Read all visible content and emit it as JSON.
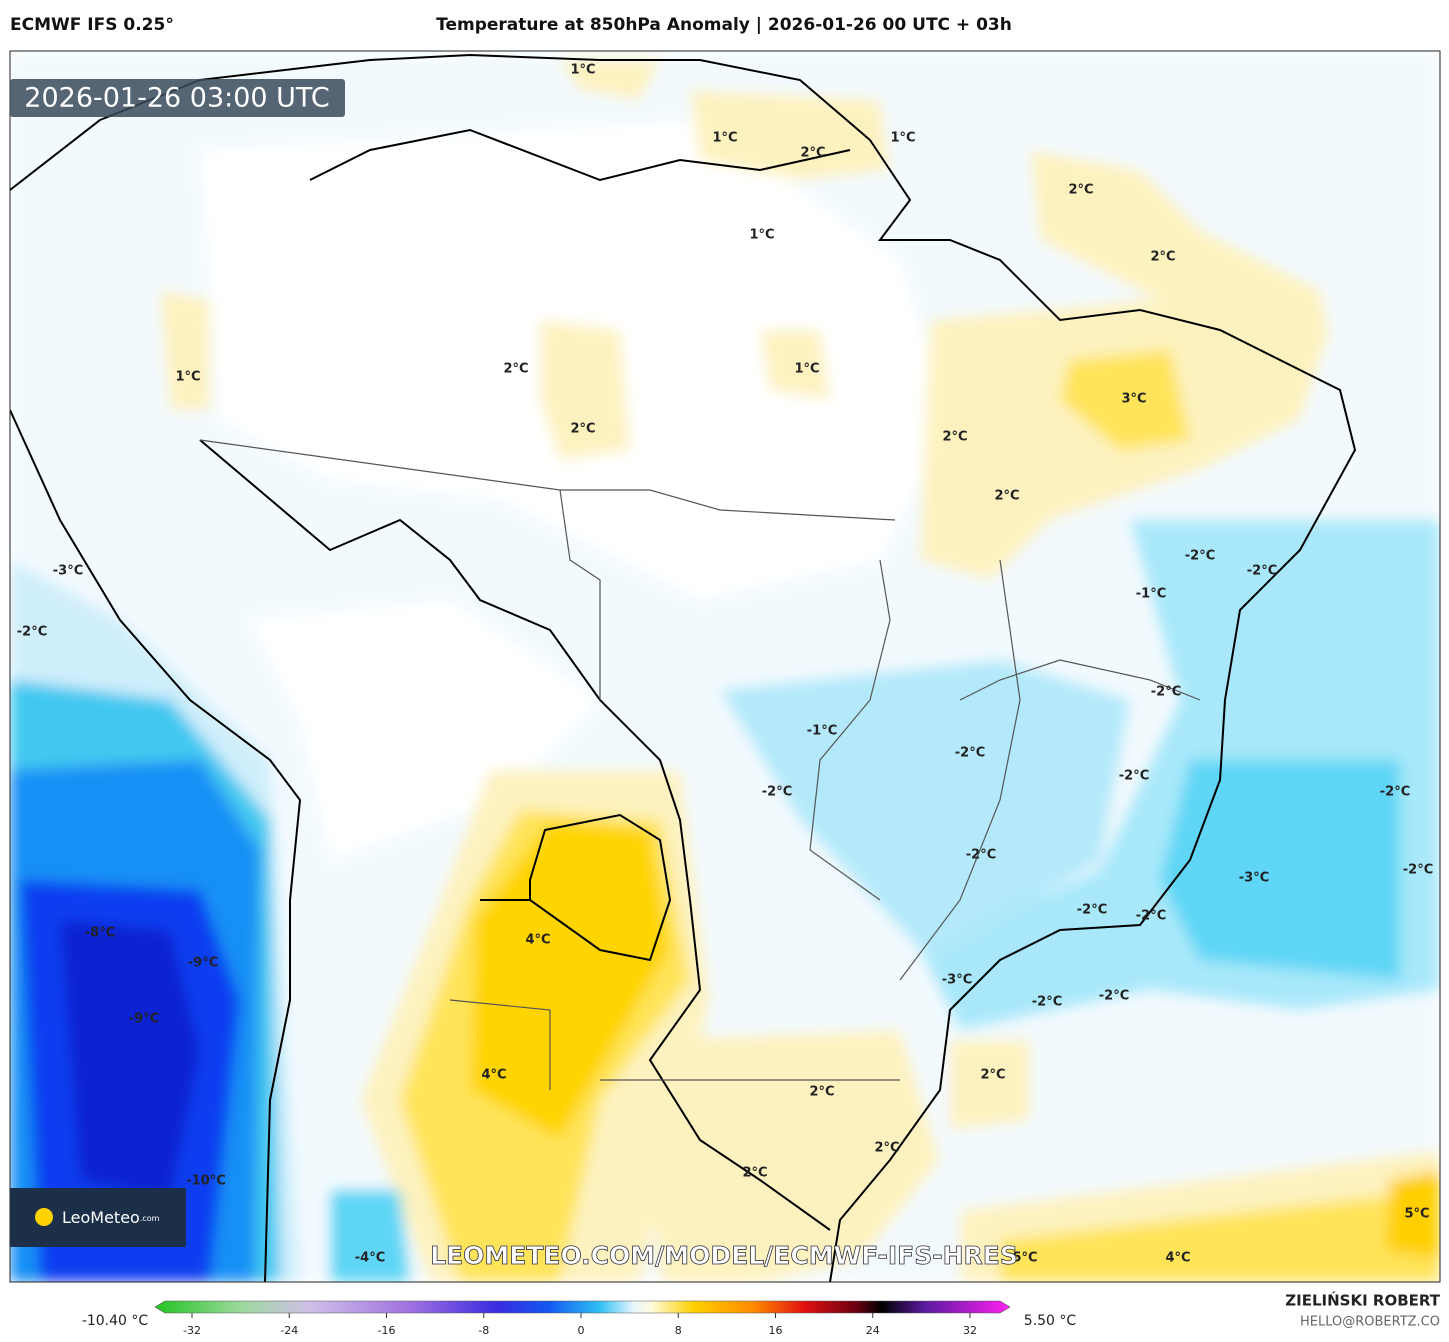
{
  "header": {
    "model": "ECMWF IFS 0.25°",
    "title": "Temperature at 850hPa Anomaly | 2026-01-26 00 UTC + 03h"
  },
  "map": {
    "timestamp": "2026-01-26 03:00 UTC",
    "contour_labels": [
      "1°C",
      "1°C",
      "2°C",
      "1°C",
      "2°C",
      "1°C",
      "2°C",
      "1°C",
      "2°C",
      "1°C",
      "3°C",
      "2°C",
      "2°C",
      "2°C",
      "-3°C",
      "-2°C",
      "-2°C",
      "-1°C",
      "-2°C",
      "-2°C",
      "-1°C",
      "-2°C",
      "-2°C",
      "-2°C",
      "-2°C",
      "-2°C",
      "-3°C",
      "-2°C",
      "-2°C",
      "-2°C",
      "-8°C",
      "4°C",
      "-9°C",
      "-3°C",
      "-2°C",
      "-2°C",
      "-9°C",
      "4°C",
      "2°C",
      "2°C",
      "2°C",
      "2°C",
      "-10°C",
      "5°C",
      "-4°C",
      "5°C",
      "4°C"
    ],
    "logo": "LeoMeteo",
    "logo_suffix": ".com",
    "watermark": "LEOMETEO.COM/MODEL/ECMWF-IFS-HRES"
  },
  "colorbar": {
    "min_label": "-10.40 °C",
    "max_label": "5.50 °C",
    "ticks": [
      -32,
      -24,
      -16,
      -8,
      0,
      8,
      16,
      24,
      32
    ]
  },
  "footer": {
    "author": "ZIELIŃSKI ROBERT",
    "email": "HELLO@ROBERTZ.CO"
  }
}
